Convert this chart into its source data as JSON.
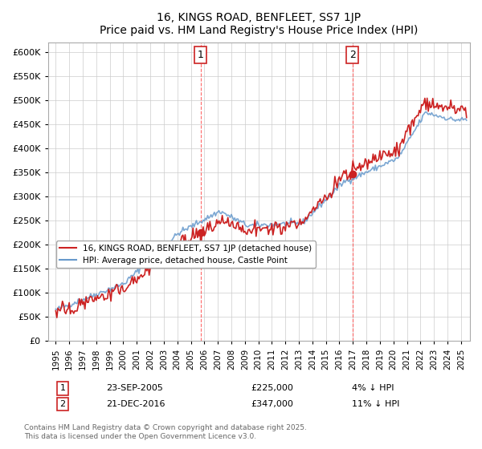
{
  "title": "16, KINGS ROAD, BENFLEET, SS7 1JP",
  "subtitle": "Price paid vs. HM Land Registry's House Price Index (HPI)",
  "ylabel": "",
  "ylim": [
    0,
    620000
  ],
  "yticks": [
    0,
    50000,
    100000,
    150000,
    200000,
    250000,
    300000,
    350000,
    400000,
    450000,
    500000,
    550000,
    600000
  ],
  "sale1_date": "23-SEP-2005",
  "sale1_price": 225000,
  "sale1_hpi": "4% ↓ HPI",
  "sale2_date": "21-DEC-2016",
  "sale2_price": 347000,
  "sale2_hpi": "11% ↓ HPI",
  "legend_label1": "16, KINGS ROAD, BENFLEET, SS7 1JP (detached house)",
  "legend_label2": "HPI: Average price, detached house, Castle Point",
  "footer": "Contains HM Land Registry data © Crown copyright and database right 2025.\nThis data is licensed under the Open Government Licence v3.0.",
  "hpi_color": "#6699cc",
  "price_color": "#cc2222",
  "marker_color": "#cc2222",
  "vline_color": "#ff4444",
  "grid_color": "#cccccc",
  "background_color": "#ffffff"
}
